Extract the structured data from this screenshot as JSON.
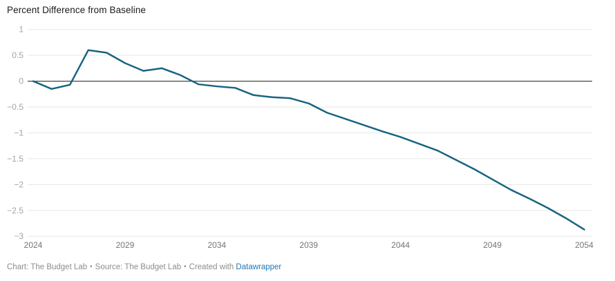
{
  "title": "Percent Difference from Baseline",
  "footer": {
    "chart_credit": "Chart: The Budget Lab",
    "separator": "•",
    "source_credit": "Source: The Budget Lab",
    "created_with": "Created with",
    "link_label": "Datawrapper"
  },
  "colors": {
    "line": "#186482",
    "grid": "#e6e6e6",
    "zero_line": "#1a1a1a",
    "y_tick_label": "#a3a3a3",
    "x_tick_label": "#757575",
    "title_text": "#1a1a1a",
    "footer_text": "#8c8c8c",
    "link": "#1f77b4"
  },
  "chart_data": {
    "type": "line",
    "title": "Percent Difference from Baseline",
    "xlabel": "",
    "ylabel": "",
    "x": [
      2024,
      2025,
      2026,
      2027,
      2028,
      2029,
      2030,
      2031,
      2032,
      2033,
      2034,
      2035,
      2036,
      2037,
      2038,
      2039,
      2040,
      2041,
      2042,
      2043,
      2044,
      2045,
      2046,
      2047,
      2048,
      2049,
      2050,
      2051,
      2052,
      2053,
      2054
    ],
    "series": [
      {
        "name": "Percent difference from baseline",
        "values": [
          0,
          -0.15,
          -0.07,
          0.6,
          0.55,
          0.35,
          0.2,
          0.25,
          0.12,
          -0.06,
          -0.1,
          -0.13,
          -0.27,
          -0.31,
          -0.33,
          -0.43,
          -0.61,
          -0.73,
          -0.85,
          -0.97,
          -1.08,
          -1.21,
          -1.34,
          -1.52,
          -1.7,
          -1.9,
          -2.1,
          -2.27,
          -2.45,
          -2.65,
          -2.87
        ]
      }
    ],
    "xlim": [
      2024,
      2054
    ],
    "ylim": [
      -3,
      1
    ],
    "yticks": {
      "values": [
        1,
        0.5,
        0,
        -0.5,
        -1,
        -1.5,
        -2,
        -2.5,
        -3
      ],
      "labels": [
        "1",
        "0.5",
        "0",
        "−0.5",
        "−1",
        "−1.5",
        "−2",
        "−2.5",
        "−3"
      ]
    },
    "xticks": {
      "values": [
        2024,
        2029,
        2034,
        2039,
        2044,
        2049,
        2054
      ],
      "labels": [
        "2024",
        "2029",
        "2034",
        "2039",
        "2044",
        "2049",
        "2054"
      ]
    },
    "grid": true,
    "legend": "none",
    "zero_baseline": true
  }
}
